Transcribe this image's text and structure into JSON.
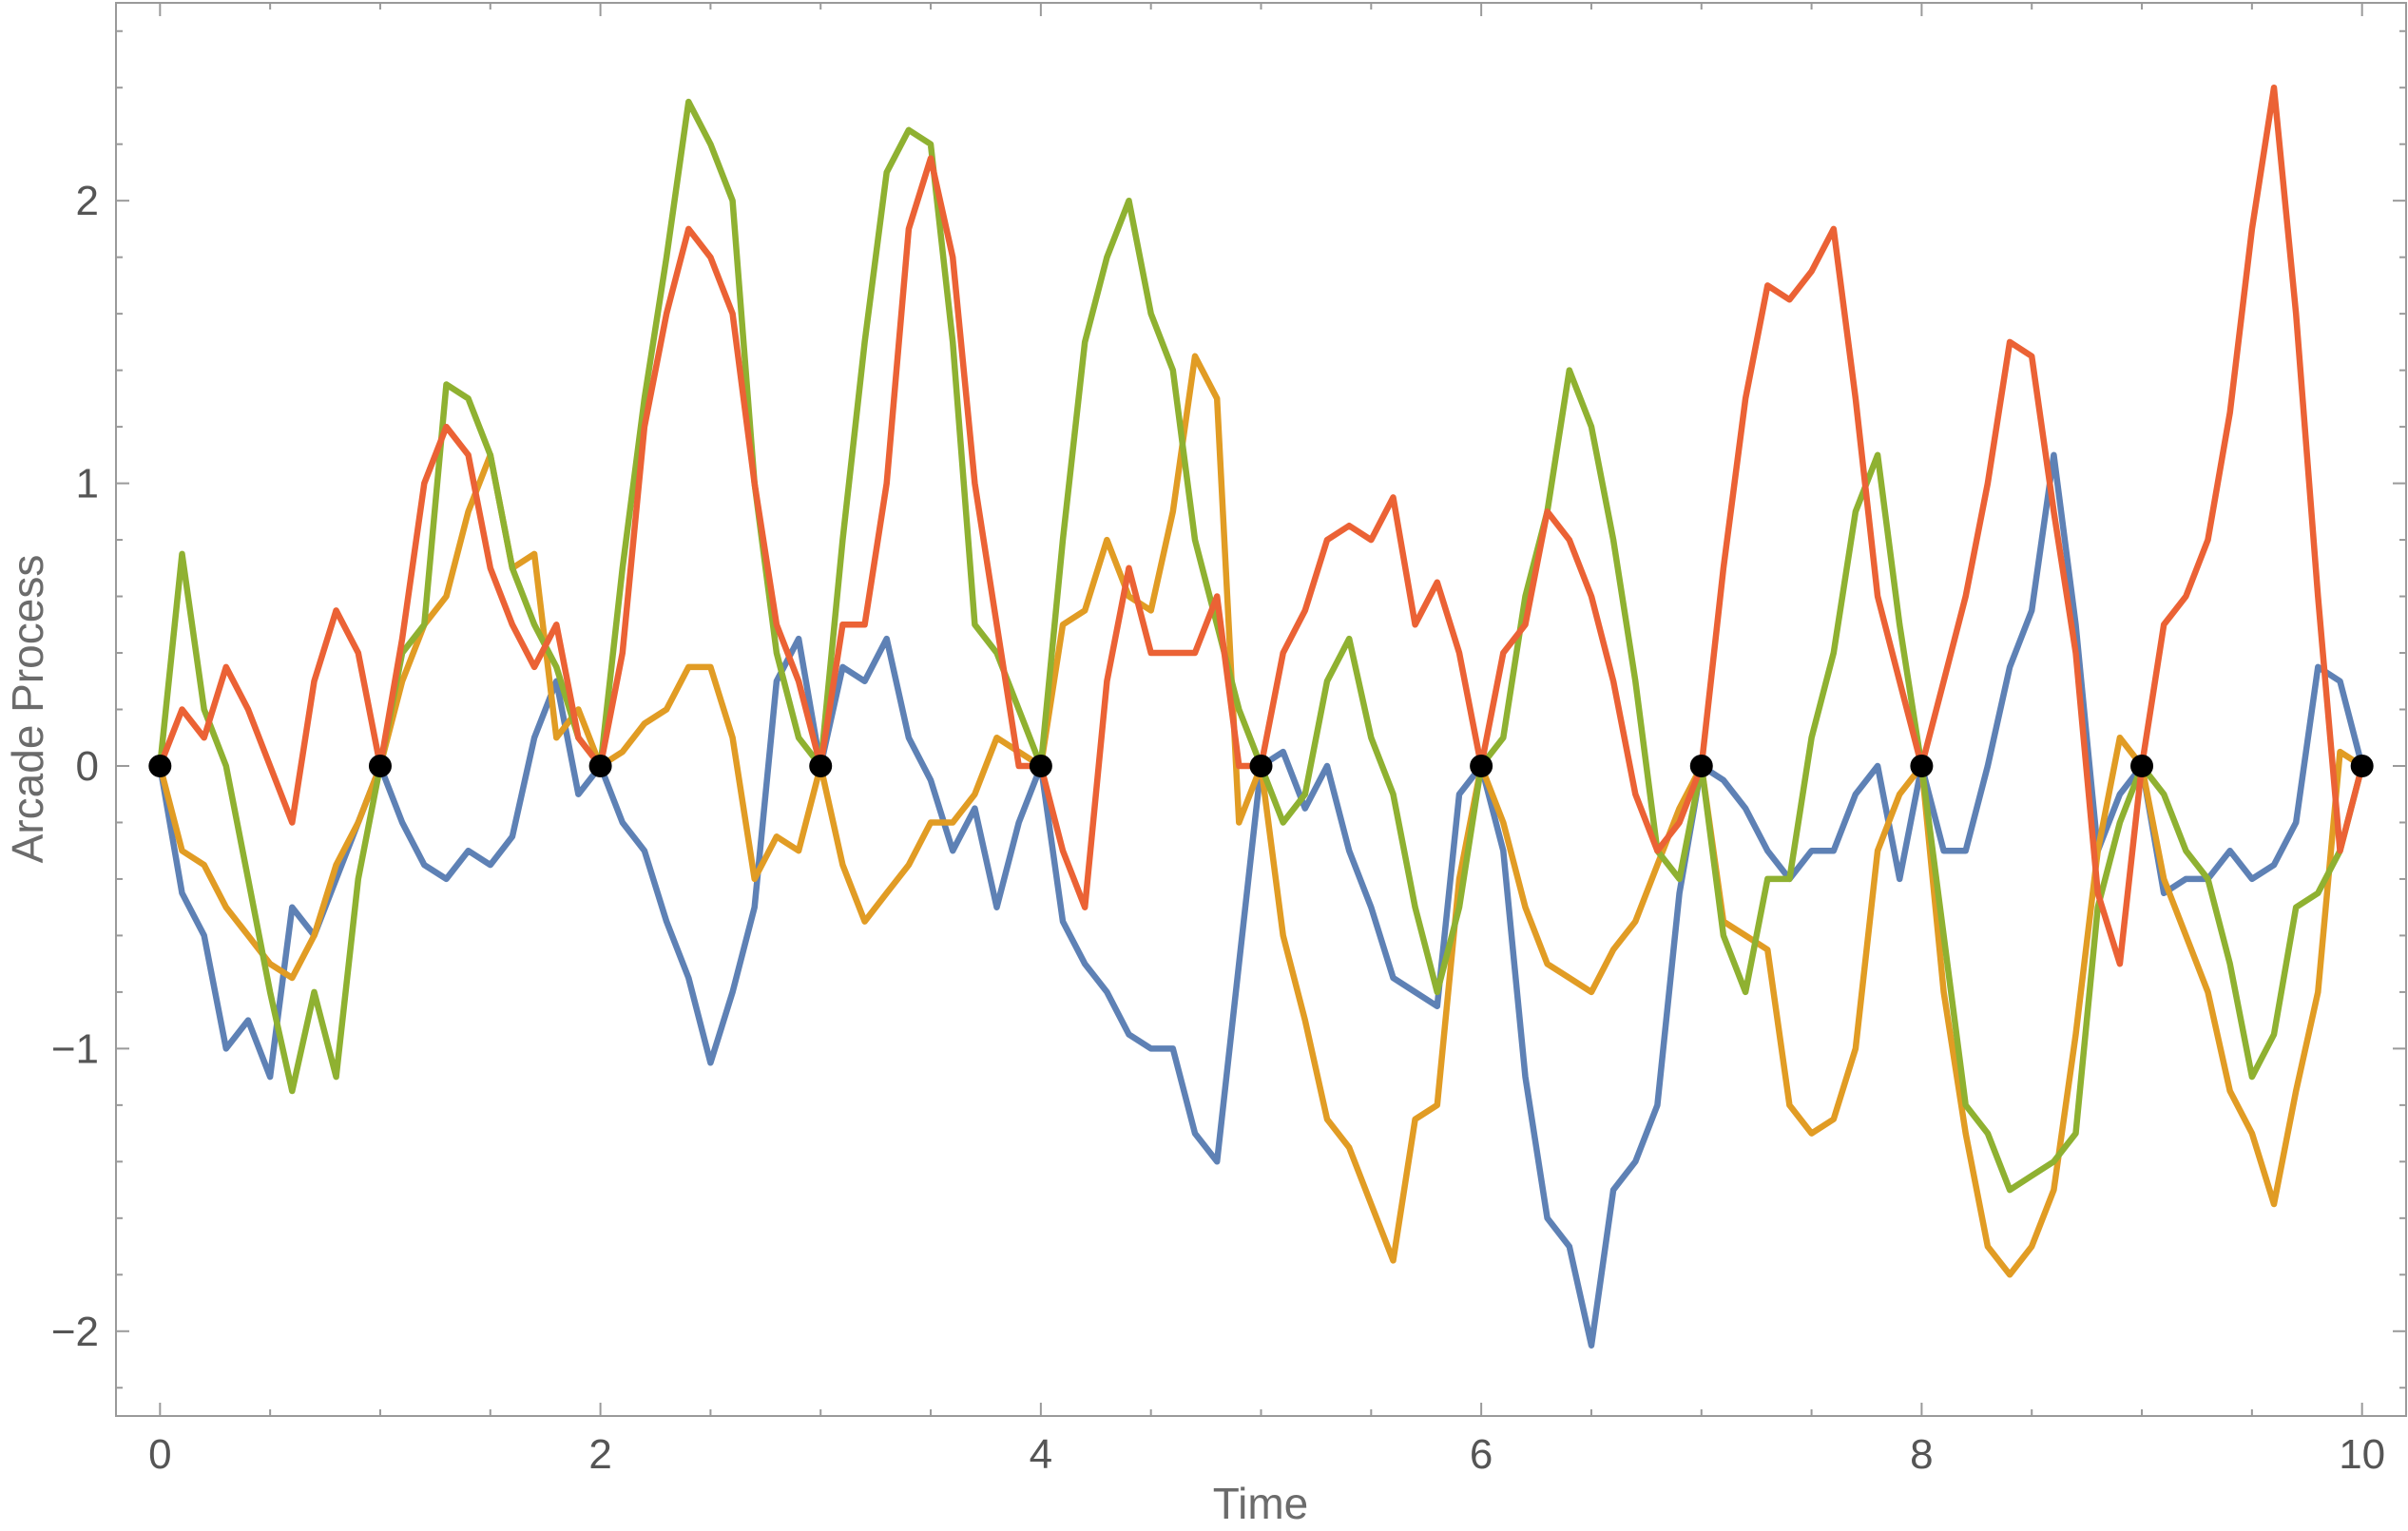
{
  "chart_data": {
    "type": "line",
    "title": "",
    "xlabel": "Time",
    "ylabel": "Arcade Process",
    "xlim": [
      -0.2,
      10.2
    ],
    "ylim": [
      -2.3,
      2.7
    ],
    "xticks": [
      0,
      2,
      4,
      6,
      8,
      10
    ],
    "xtick_labels": [
      "0",
      "2",
      "4",
      "6",
      "8",
      "10"
    ],
    "yticks": [
      -2,
      -1,
      0,
      1,
      2
    ],
    "ytick_labels": [
      "−2",
      "−1",
      "0",
      "1",
      "2"
    ],
    "grid": false,
    "legend": "none",
    "series": [
      {
        "color": "#5E81B5",
        "x": [
          0,
          0.1,
          0.2,
          0.3,
          0.4,
          0.5,
          0.6,
          0.7,
          0.8,
          0.9,
          1.0,
          1.1,
          1.2,
          1.3,
          1.4,
          1.5,
          1.6,
          1.7,
          1.8,
          1.9,
          2.0,
          2.1,
          2.2,
          2.3,
          2.4,
          2.5,
          2.6,
          2.7,
          2.8,
          2.9,
          3.0,
          3.1,
          3.2,
          3.3,
          3.4,
          3.5,
          3.6,
          3.7,
          3.8,
          3.9,
          4.0,
          4.1,
          4.2,
          4.3,
          4.4,
          4.5,
          4.6,
          4.7,
          4.8,
          4.9,
          5.0,
          5.1,
          5.2,
          5.3,
          5.4,
          5.5,
          5.6,
          5.7,
          5.8,
          5.9,
          6.0,
          6.1,
          6.2,
          6.3,
          6.4,
          6.5,
          6.6,
          6.7,
          6.8,
          6.9,
          7.0,
          7.1,
          7.2,
          7.3,
          7.4,
          7.5,
          7.6,
          7.7,
          7.8,
          7.9,
          8.0,
          8.1,
          8.2,
          8.3,
          8.4,
          8.5,
          8.6,
          8.7,
          8.8,
          8.9,
          9.0,
          9.1,
          9.2,
          9.3,
          9.4,
          9.5,
          9.6,
          9.7,
          9.8,
          9.9,
          10.0
        ],
        "y": [
          0,
          -0.45,
          -0.6,
          -1.0,
          -0.9,
          -1.1,
          -0.5,
          -0.6,
          -0.4,
          -0.2,
          0,
          -0.2,
          -0.35,
          -0.4,
          -0.3,
          -0.35,
          -0.25,
          0.1,
          0.3,
          -0.1,
          0,
          -0.2,
          -0.3,
          -0.55,
          -0.75,
          -1.05,
          -0.8,
          -0.5,
          0.3,
          0.45,
          0,
          0.35,
          0.3,
          0.45,
          0.1,
          -0.05,
          -0.3,
          -0.15,
          -0.5,
          -0.2,
          0,
          -0.55,
          -0.7,
          -0.8,
          -0.95,
          -1.0,
          -1.0,
          -1.3,
          -1.4,
          -0.7,
          0,
          0.05,
          -0.15,
          0.0,
          -0.3,
          -0.5,
          -0.75,
          -0.8,
          -0.85,
          -0.1,
          0,
          -0.3,
          -1.1,
          -1.6,
          -1.7,
          -2.05,
          -1.5,
          -1.4,
          -1.2,
          -0.45,
          0,
          -0.05,
          -0.15,
          -0.3,
          -0.4,
          -0.3,
          -0.3,
          -0.1,
          0.0,
          -0.4,
          0,
          -0.3,
          -0.3,
          0.0,
          0.35,
          0.55,
          1.1,
          0.5,
          -0.3,
          -0.1,
          0,
          -0.45,
          -0.4,
          -0.4,
          -0.3,
          -0.4,
          -0.35,
          -0.2,
          0.35,
          0.3,
          0
        ]
      },
      {
        "color": "#E19C24",
        "x": [
          0,
          0.1,
          0.2,
          0.3,
          0.4,
          0.5,
          0.6,
          0.7,
          0.8,
          0.9,
          1.0,
          1.1,
          1.2,
          1.3,
          1.4,
          1.5,
          1.6,
          1.7,
          1.8,
          1.9,
          2.0,
          2.1,
          2.2,
          2.3,
          2.4,
          2.5,
          2.6,
          2.7,
          2.8,
          2.9,
          3.0,
          3.1,
          3.2,
          3.3,
          3.4,
          3.5,
          3.6,
          3.7,
          3.8,
          3.9,
          4.0,
          4.1,
          4.2,
          4.3,
          4.4,
          4.5,
          4.6,
          4.7,
          4.8,
          4.9,
          5.0,
          5.1,
          5.2,
          5.3,
          5.4,
          5.5,
          5.6,
          5.7,
          5.8,
          5.9,
          6.0,
          6.1,
          6.2,
          6.3,
          6.4,
          6.5,
          6.6,
          6.7,
          6.8,
          6.9,
          7.0,
          7.1,
          7.2,
          7.3,
          7.4,
          7.5,
          7.6,
          7.7,
          7.8,
          7.9,
          8.0,
          8.1,
          8.2,
          8.3,
          8.4,
          8.5,
          8.6,
          8.7,
          8.8,
          8.9,
          9.0,
          9.1,
          9.2,
          9.3,
          9.4,
          9.5,
          9.6,
          9.7,
          9.8,
          9.9,
          10.0
        ],
        "y": [
          0,
          -0.3,
          -0.35,
          -0.5,
          -0.6,
          -0.7,
          -0.75,
          -0.6,
          -0.35,
          -0.2,
          0,
          0.3,
          0.5,
          0.6,
          0.9,
          1.1,
          0.7,
          0.75,
          0.1,
          0.2,
          0,
          0.05,
          0.15,
          0.2,
          0.35,
          0.35,
          0.1,
          -0.4,
          -0.25,
          -0.3,
          0,
          -0.35,
          -0.55,
          -0.45,
          -0.35,
          -0.2,
          -0.2,
          -0.1,
          0.1,
          0.05,
          0,
          0.5,
          0.55,
          0.8,
          0.6,
          0.55,
          0.9,
          1.45,
          1.3,
          -0.2,
          0,
          -0.6,
          -0.9,
          -1.25,
          -1.35,
          -1.55,
          -1.75,
          -1.25,
          -1.2,
          -0.4,
          0,
          -0.2,
          -0.5,
          -0.7,
          -0.75,
          -0.8,
          -0.65,
          -0.55,
          -0.35,
          -0.15,
          0,
          -0.55,
          -0.6,
          -0.65,
          -1.2,
          -1.3,
          -1.25,
          -1.0,
          -0.3,
          -0.1,
          0,
          -0.8,
          -1.3,
          -1.7,
          -1.8,
          -1.7,
          -1.5,
          -0.95,
          -0.3,
          0.1,
          0,
          -0.4,
          -0.6,
          -0.8,
          -1.15,
          -1.3,
          -1.55,
          -1.15,
          -0.8,
          0.05,
          0
        ]
      },
      {
        "color": "#8FB131",
        "x": [
          0,
          0.1,
          0.2,
          0.3,
          0.4,
          0.5,
          0.6,
          0.7,
          0.8,
          0.9,
          1.0,
          1.1,
          1.2,
          1.3,
          1.4,
          1.5,
          1.6,
          1.7,
          1.8,
          1.9,
          2.0,
          2.1,
          2.2,
          2.3,
          2.4,
          2.5,
          2.6,
          2.7,
          2.8,
          2.9,
          3.0,
          3.1,
          3.2,
          3.3,
          3.4,
          3.5,
          3.6,
          3.7,
          3.8,
          3.9,
          4.0,
          4.1,
          4.2,
          4.3,
          4.4,
          4.5,
          4.6,
          4.7,
          4.8,
          4.9,
          5.0,
          5.1,
          5.2,
          5.3,
          5.4,
          5.5,
          5.6,
          5.7,
          5.8,
          5.9,
          6.0,
          6.1,
          6.2,
          6.3,
          6.4,
          6.5,
          6.6,
          6.7,
          6.8,
          6.9,
          7.0,
          7.1,
          7.2,
          7.3,
          7.4,
          7.5,
          7.6,
          7.7,
          7.8,
          7.9,
          8.0,
          8.1,
          8.2,
          8.3,
          8.4,
          8.5,
          8.6,
          8.7,
          8.8,
          8.9,
          9.0,
          9.1,
          9.2,
          9.3,
          9.4,
          9.5,
          9.6,
          9.7,
          9.8,
          9.9,
          10.0
        ],
        "y": [
          0,
          0.75,
          0.2,
          0.0,
          -0.4,
          -0.8,
          -1.15,
          -0.8,
          -1.1,
          -0.4,
          0,
          0.4,
          0.5,
          1.35,
          1.3,
          1.1,
          0.7,
          0.5,
          0.35,
          0.1,
          0,
          0.7,
          1.3,
          1.8,
          2.35,
          2.2,
          2.0,
          1.0,
          0.4,
          0.1,
          0,
          0.8,
          1.5,
          2.1,
          2.25,
          2.2,
          1.5,
          0.5,
          0.4,
          0.2,
          0,
          0.8,
          1.5,
          1.8,
          2.0,
          1.6,
          1.4,
          0.8,
          0.5,
          0.2,
          0,
          -0.2,
          -0.1,
          0.3,
          0.45,
          0.1,
          -0.1,
          -0.5,
          -0.8,
          -0.5,
          0,
          0.1,
          0.6,
          0.9,
          1.4,
          1.2,
          0.8,
          0.3,
          -0.3,
          -0.4,
          0,
          -0.6,
          -0.8,
          -0.4,
          -0.4,
          0.1,
          0.4,
          0.9,
          1.1,
          0.5,
          0,
          -0.6,
          -1.2,
          -1.3,
          -1.5,
          -1.45,
          -1.4,
          -1.3,
          -0.5,
          -0.2,
          0,
          -0.1,
          -0.3,
          -0.4,
          -0.7,
          -1.1,
          -0.95,
          -0.5,
          -0.45,
          -0.3,
          0
        ]
      },
      {
        "color": "#EB6235",
        "x": [
          0,
          0.1,
          0.2,
          0.3,
          0.4,
          0.5,
          0.6,
          0.7,
          0.8,
          0.9,
          1.0,
          1.1,
          1.2,
          1.3,
          1.4,
          1.5,
          1.6,
          1.7,
          1.8,
          1.9,
          2.0,
          2.1,
          2.2,
          2.3,
          2.4,
          2.5,
          2.6,
          2.7,
          2.8,
          2.9,
          3.0,
          3.1,
          3.2,
          3.3,
          3.4,
          3.5,
          3.6,
          3.7,
          3.8,
          3.9,
          4.0,
          4.1,
          4.2,
          4.3,
          4.4,
          4.5,
          4.6,
          4.7,
          4.8,
          4.9,
          5.0,
          5.1,
          5.2,
          5.3,
          5.4,
          5.5,
          5.6,
          5.7,
          5.8,
          5.9,
          6.0,
          6.1,
          6.2,
          6.3,
          6.4,
          6.5,
          6.6,
          6.7,
          6.8,
          6.9,
          7.0,
          7.1,
          7.2,
          7.3,
          7.4,
          7.5,
          7.6,
          7.7,
          7.8,
          7.9,
          8.0,
          8.1,
          8.2,
          8.3,
          8.4,
          8.5,
          8.6,
          8.7,
          8.8,
          8.9,
          9.0,
          9.1,
          9.2,
          9.3,
          9.4,
          9.5,
          9.6,
          9.7,
          9.8,
          9.9,
          10.0
        ],
        "y": [
          0,
          0.2,
          0.1,
          0.35,
          0.2,
          0.0,
          -0.2,
          0.3,
          0.55,
          0.4,
          0,
          0.45,
          1.0,
          1.2,
          1.1,
          0.7,
          0.5,
          0.35,
          0.5,
          0.1,
          0,
          0.4,
          1.2,
          1.6,
          1.9,
          1.8,
          1.6,
          1.0,
          0.5,
          0.3,
          0,
          0.5,
          0.5,
          1.0,
          1.9,
          2.15,
          1.8,
          1.0,
          0.5,
          0.0,
          0,
          -0.3,
          -0.5,
          0.3,
          0.7,
          0.4,
          0.4,
          0.4,
          0.6,
          0.0,
          0,
          0.4,
          0.55,
          0.8,
          0.85,
          0.8,
          0.95,
          0.5,
          0.65,
          0.4,
          0,
          0.4,
          0.5,
          0.9,
          0.8,
          0.6,
          0.3,
          -0.1,
          -0.3,
          -0.2,
          0,
          0.7,
          1.3,
          1.7,
          1.65,
          1.75,
          1.9,
          1.3,
          0.6,
          0.3,
          0,
          0.3,
          0.6,
          1.0,
          1.5,
          1.45,
          0.9,
          0.4,
          -0.45,
          -0.7,
          0,
          0.5,
          0.6,
          0.8,
          1.25,
          1.9,
          2.4,
          1.6,
          0.6,
          -0.3,
          0
        ]
      }
    ],
    "pinned_points": {
      "x": [
        0,
        1,
        2,
        3,
        4,
        5,
        6,
        7,
        8,
        9,
        10
      ],
      "y": [
        0,
        0,
        0,
        0,
        0,
        0,
        0,
        0,
        0,
        0,
        0
      ],
      "color": "#000000"
    }
  }
}
